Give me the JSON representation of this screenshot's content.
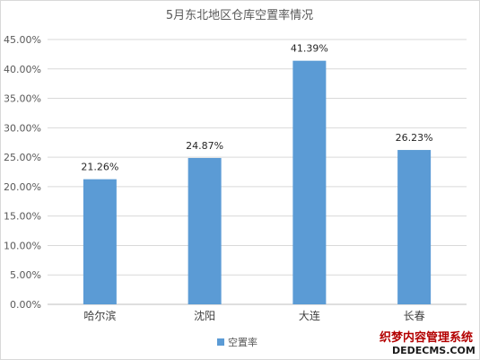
{
  "chart_data": {
    "type": "bar",
    "title": "5月东北地区仓库空置率情况",
    "categories": [
      "哈尔滨",
      "沈阳",
      "大连",
      "长春"
    ],
    "series": [
      {
        "name": "空置率",
        "values": [
          21.26,
          24.87,
          41.39,
          26.23
        ],
        "color": "#5b9bd5"
      }
    ],
    "data_labels": [
      "21.26%",
      "24.87%",
      "41.39%",
      "26.23%"
    ],
    "y_ticks": [
      "0.00%",
      "5.00%",
      "10.00%",
      "15.00%",
      "20.00%",
      "25.00%",
      "30.00%",
      "35.00%",
      "40.00%",
      "45.00%"
    ],
    "ylim": [
      0,
      45
    ],
    "grid": true,
    "legend_position": "bottom"
  },
  "watermark": {
    "line1": "织梦内容管理系统",
    "line2": "DEDECMS.COM"
  }
}
